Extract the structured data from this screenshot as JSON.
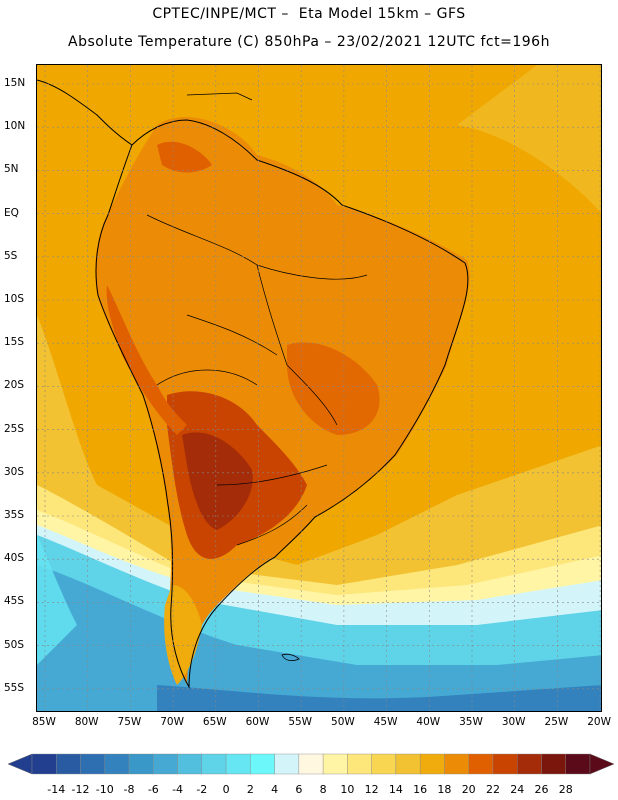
{
  "header": {
    "line1": "CPTEC/INPE/MCT –  Eta Model 15km – GFS",
    "line2": "Absolute Temperature (C) 850hPa – 23/02/2021 12UTC fct=196h"
  },
  "map": {
    "lat_ticks": [
      "15N",
      "10N",
      "5N",
      "EQ",
      "5S",
      "10S",
      "15S",
      "20S",
      "25S",
      "30S",
      "35S",
      "40S",
      "45S",
      "50S",
      "55S"
    ],
    "lon_ticks": [
      "85W",
      "80W",
      "75W",
      "70W",
      "65W",
      "60W",
      "55W",
      "50W",
      "45W",
      "40W",
      "35W",
      "30W",
      "25W",
      "20W"
    ],
    "regions": [
      {
        "name": "warm-ocean-north",
        "level": 18,
        "color": "#f0a800"
      },
      {
        "name": "continent-interior",
        "level": 20,
        "color": "#e47c06"
      },
      {
        "name": "hot-core-south",
        "level": 24,
        "color": "#b8420a"
      },
      {
        "name": "mild-south-atlantic",
        "level": 14,
        "color": "#f2cc3c"
      },
      {
        "name": "cool-southern-ocean",
        "level": 2,
        "color": "#5fe0ec"
      },
      {
        "name": "cold-southern-ocean",
        "level": -4,
        "color": "#3aaed6"
      }
    ]
  },
  "colorbar": {
    "labels": [
      "-14",
      "-12",
      "-10",
      "-8",
      "-6",
      "-4",
      "-2",
      "0",
      "2",
      "4",
      "6",
      "8",
      "10",
      "12",
      "14",
      "16",
      "18",
      "20",
      "22",
      "24",
      "26",
      "28"
    ],
    "colors": [
      "#223f8f",
      "#285ba2",
      "#2e6fb2",
      "#3382bd",
      "#3a98c8",
      "#45a9d4",
      "#52bfde",
      "#5fd3e8",
      "#66e6f2",
      "#6cf8fb",
      "#d3f5fa",
      "#fff7e0",
      "#fff5a4",
      "#fde67a",
      "#f8d652",
      "#f2c232",
      "#f0ab0c",
      "#ec8c06",
      "#e06000",
      "#c84400",
      "#a42c08",
      "#7a160c",
      "#5a0a18"
    ]
  }
}
